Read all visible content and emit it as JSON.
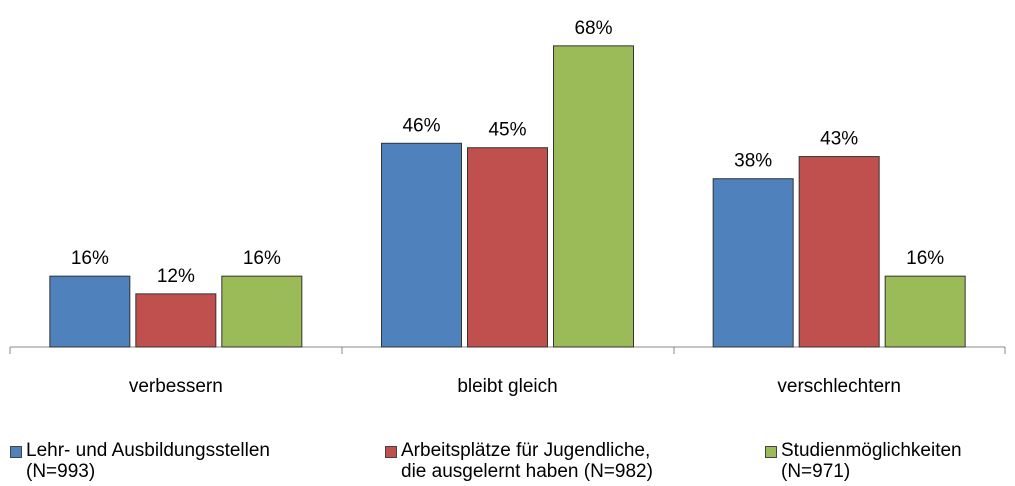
{
  "chart_data": {
    "type": "bar",
    "categories": [
      "verbessern",
      "bleibt gleich",
      "verschlechtern"
    ],
    "series": [
      {
        "name": "Lehr- und Ausbildungsstellen\n(N=993)",
        "color": "#4f81bd",
        "values": [
          16,
          46,
          38
        ],
        "value_labels": [
          "16%",
          "46%",
          "38%"
        ]
      },
      {
        "name": "Arbeitsplätze für Jugendliche,\ndie ausgelernt haben (N=982)",
        "color": "#c0504d",
        "values": [
          12,
          45,
          43
        ],
        "value_labels": [
          "12%",
          "45%",
          "43%"
        ]
      },
      {
        "name": "Studienmöglichkeiten\n(N=971)",
        "color": "#9bbb59",
        "values": [
          16,
          68,
          16
        ],
        "value_labels": [
          "16%",
          "68%",
          "16%"
        ]
      }
    ],
    "ylim": [
      0,
      70
    ]
  }
}
